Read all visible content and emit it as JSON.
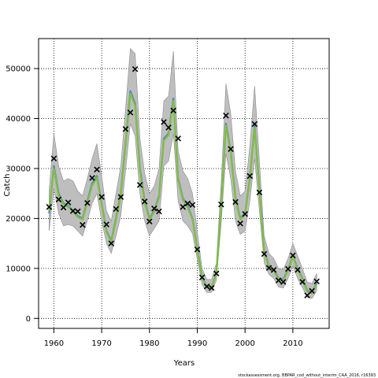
{
  "chart_data": {
    "type": "line",
    "title": "",
    "xlabel": "Years",
    "ylabel": "Catch",
    "footnote": "stockassessment.org, BBPAR_cod_without_interim_CAA_2016, r16393",
    "xlim": [
      1956.8,
      2017.6
    ],
    "ylim": [
      -2000,
      56000
    ],
    "x_ticks": [
      1960,
      1970,
      1980,
      1990,
      2000,
      2010
    ],
    "y_ticks": [
      0,
      10000,
      20000,
      30000,
      40000,
      50000
    ],
    "grid": "dotted",
    "colors": {
      "band": "#bebebe",
      "band_edge": "#8c8c8c",
      "blue_line": "#4f86c6",
      "green_line": "#7fbf3f",
      "marker": "#000000"
    },
    "years": [
      1959,
      1960,
      1961,
      1962,
      1963,
      1964,
      1965,
      1966,
      1967,
      1968,
      1969,
      1970,
      1971,
      1972,
      1973,
      1974,
      1975,
      1976,
      1977,
      1978,
      1979,
      1980,
      1981,
      1982,
      1983,
      1984,
      1985,
      1986,
      1987,
      1988,
      1989,
      1990,
      1991,
      1992,
      1993,
      1994,
      1995,
      1996,
      1997,
      1998,
      1999,
      2000,
      2001,
      2002,
      2003,
      2004,
      2005,
      2006,
      2007,
      2008,
      2009,
      2010,
      2011,
      2012,
      2013,
      2014,
      2015
    ],
    "observed": [
      22300,
      32000,
      23800,
      22200,
      23200,
      21500,
      21400,
      18700,
      23100,
      28100,
      29800,
      24300,
      18800,
      15000,
      21900,
      24300,
      37900,
      41200,
      49900,
      26700,
      23400,
      19400,
      22000,
      21400,
      39300,
      38200,
      41600,
      36000,
      22300,
      23000,
      22700,
      13800,
      8200,
      6400,
      6100,
      9000,
      22800,
      40600,
      33900,
      23300,
      19000,
      20900,
      28500,
      38900,
      25200,
      12900,
      10100,
      9700,
      7600,
      7300,
      9900,
      12600,
      9700,
      7300,
      4600,
      5500,
      7400
    ],
    "series": [
      {
        "name": "",
        "values": [
          21000,
          30500,
          25000,
          23000,
          22500,
          21500,
          20500,
          20000,
          23500,
          27000,
          28500,
          23000,
          17500,
          15500,
          20000,
          25000,
          35000,
          45500,
          43000,
          30000,
          23500,
          20000,
          21500,
          24500,
          36000,
          37000,
          44000,
          28000,
          24000,
          22500,
          20000,
          14000,
          8200,
          6300,
          6300,
          9000,
          22500,
          39000,
          33500,
          24000,
          20000,
          21000,
          28000,
          38500,
          26000,
          13500,
          10500,
          9800,
          8000,
          7800,
          9800,
          12500,
          10000,
          8000,
          5600,
          5200,
          7000
        ]
      },
      {
        "name": "",
        "values": [
          21500,
          30000,
          24500,
          22800,
          22300,
          21300,
          20300,
          19800,
          23200,
          26600,
          28200,
          22800,
          17300,
          15300,
          19700,
          24600,
          34600,
          45000,
          42600,
          29600,
          23200,
          19800,
          21300,
          24200,
          35600,
          36700,
          43500,
          27700,
          23700,
          22200,
          19800,
          13800,
          8000,
          6200,
          6200,
          8900,
          22200,
          38600,
          33200,
          23700,
          19800,
          20800,
          27700,
          38100,
          25700,
          13300,
          10300,
          9600,
          7800,
          7600,
          9600,
          12300,
          9800,
          7800,
          5400,
          5000,
          6800
        ]
      }
    ],
    "band_lower": [
      17500,
      26000,
      21000,
      18500,
      18800,
      18500,
      17500,
      16500,
      19500,
      23000,
      25000,
      19500,
      15000,
      13000,
      16500,
      20500,
      29500,
      39000,
      36500,
      25000,
      19500,
      16500,
      18000,
      19500,
      30500,
      31500,
      37000,
      23500,
      19500,
      18500,
      17000,
      11800,
      6800,
      5200,
      5200,
      7600,
      19000,
      33000,
      28000,
      19500,
      16800,
      17500,
      23500,
      32000,
      21500,
      11200,
      8800,
      8000,
      6300,
      6100,
      8000,
      10500,
      8000,
      6200,
      4200,
      4000,
      5500
    ],
    "band_upper": [
      25500,
      37000,
      30500,
      27500,
      28000,
      27500,
      25500,
      24500,
      28000,
      32000,
      35000,
      28500,
      21500,
      19500,
      25000,
      30500,
      42000,
      54000,
      53000,
      36000,
      29000,
      25000,
      26500,
      30000,
      43500,
      44500,
      53500,
      33500,
      29500,
      28000,
      25000,
      17500,
      10000,
      7800,
      7800,
      11000,
      27000,
      47000,
      41000,
      29500,
      24500,
      25500,
      34500,
      46500,
      31500,
      16500,
      13000,
      12000,
      10000,
      9800,
      12000,
      15000,
      12500,
      10000,
      7300,
      7000,
      9000
    ]
  }
}
